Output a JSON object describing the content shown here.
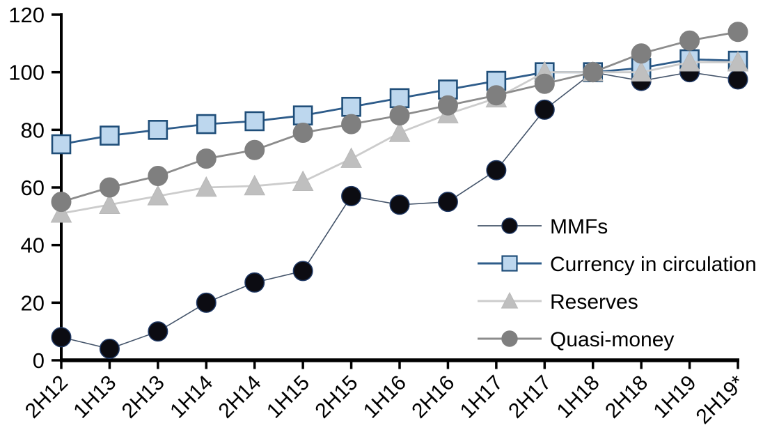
{
  "chart_data": {
    "type": "line",
    "title": "",
    "xlabel": "",
    "ylabel": "",
    "categories": [
      "2H12",
      "1H13",
      "2H13",
      "1H14",
      "2H14",
      "1H15",
      "2H15",
      "1H16",
      "2H16",
      "1H17",
      "2H17",
      "1H18",
      "2H18",
      "1H19",
      "2H19*"
    ],
    "series": [
      {
        "name": "MMFs",
        "marker": "circle",
        "marker_fill": "#0c0c12",
        "marker_stroke": "#1f3864",
        "line_color": "#44546a",
        "values": [
          8,
          4,
          10,
          20,
          27,
          31,
          57,
          54,
          55,
          66,
          87,
          100,
          97,
          100,
          97.5
        ]
      },
      {
        "name": "Currency in circulation",
        "marker": "square",
        "marker_fill": "#bdd7ee",
        "marker_stroke": "#1f4e79",
        "line_color": "#2e5c8a",
        "values": [
          75,
          78,
          80,
          82,
          83,
          85,
          88,
          91,
          94,
          97,
          100,
          100,
          101.5,
          104.5,
          104
        ]
      },
      {
        "name": "Reserves",
        "marker": "triangle",
        "marker_fill": "#bfbfbf",
        "marker_stroke": "#b8b8b8",
        "line_color": "#cccccc",
        "values": [
          51,
          54,
          57,
          60,
          60.5,
          62,
          70,
          79,
          85.5,
          91,
          100,
          100,
          100,
          103.5,
          103.5
        ]
      },
      {
        "name": "Quasi-money",
        "marker": "circle",
        "marker_fill": "#7f7f7f",
        "marker_stroke": "#7f7f7f",
        "line_color": "#8c8c8c",
        "values": [
          55,
          60,
          64,
          70,
          73,
          79,
          82,
          85,
          88.5,
          92,
          96,
          100,
          106.5,
          111,
          114
        ]
      }
    ],
    "ylim": [
      0,
      120
    ],
    "yticks": [
      0,
      20,
      40,
      60,
      80,
      100,
      120
    ],
    "grid": false,
    "legend_position": "inside-right",
    "axis_color": "#000000"
  }
}
